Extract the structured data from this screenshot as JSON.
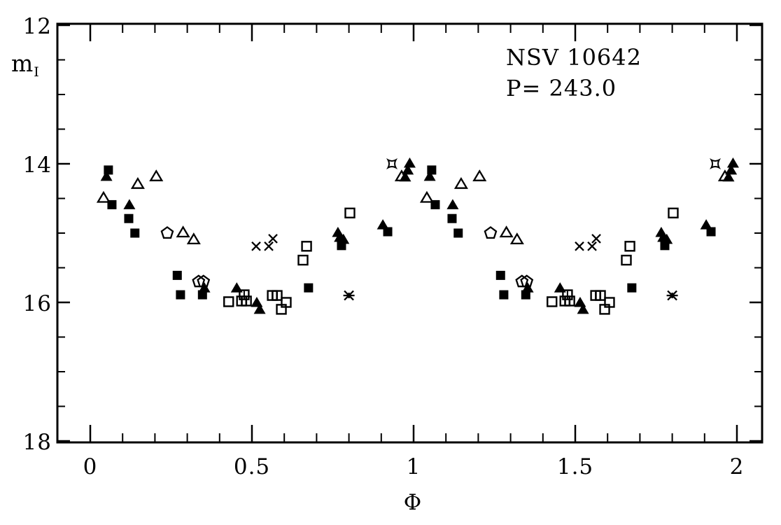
{
  "figure": {
    "star_name": "NSV 10642",
    "period_label": "P= 243.0",
    "xlabel": "Φ",
    "ylabel_main": "m",
    "ylabel_sub": "I"
  },
  "colors": {
    "foreground": "#000000",
    "background": "#ffffff"
  },
  "chart_data": {
    "type": "scatter",
    "title": "NSV 10642",
    "annotations": [
      "NSV 10642",
      "P= 243.0"
    ],
    "xlabel": "Φ",
    "ylabel": "m_I",
    "grid": false,
    "legend": "none",
    "x_axis": {
      "min": -0.1,
      "max": 2.08,
      "major_ticks": [
        0,
        0.5,
        1,
        1.5,
        2
      ],
      "tick_labels": [
        "0",
        "0.5",
        "1",
        "1.5",
        "2"
      ],
      "minor_step": 0.1
    },
    "y_axis": {
      "min": 12,
      "max": 18,
      "inverted": true,
      "major_ticks": [
        12,
        14,
        16,
        18
      ],
      "tick_labels": [
        "12",
        "14",
        "16",
        "18"
      ],
      "minor_step": 0.5
    },
    "phase_duplicated": true,
    "note": "Each point (phase 0-1) is plotted twice: at phase and phase+1",
    "series": [
      {
        "name": "filled-square",
        "marker": "filled_square",
        "points": [
          [
            0.056,
            14.09
          ],
          [
            0.067,
            14.59
          ],
          [
            0.119,
            14.79
          ],
          [
            0.138,
            15.0
          ],
          [
            0.269,
            15.61
          ],
          [
            0.279,
            15.89
          ],
          [
            0.347,
            15.89
          ],
          [
            0.675,
            15.79
          ],
          [
            0.777,
            15.18
          ],
          [
            0.92,
            14.98
          ]
        ]
      },
      {
        "name": "filled-triangle",
        "marker": "filled_triangle",
        "points": [
          [
            0.05,
            14.18
          ],
          [
            0.121,
            14.59
          ],
          [
            0.353,
            15.79
          ],
          [
            0.453,
            15.79
          ],
          [
            0.515,
            16.0
          ],
          [
            0.524,
            16.1
          ],
          [
            0.766,
            14.99
          ],
          [
            0.772,
            15.06
          ],
          [
            0.783,
            15.09
          ],
          [
            0.905,
            14.88
          ],
          [
            0.974,
            14.19
          ],
          [
            0.982,
            14.09
          ],
          [
            0.988,
            13.99
          ]
        ]
      },
      {
        "name": "open-triangle",
        "marker": "open_triangle",
        "points": [
          [
            0.041,
            14.49
          ],
          [
            0.147,
            14.29
          ],
          [
            0.204,
            14.18
          ],
          [
            0.287,
            14.99
          ],
          [
            0.32,
            15.09
          ],
          [
            0.963,
            14.18
          ]
        ]
      },
      {
        "name": "open-square",
        "marker": "open_square",
        "points": [
          [
            0.428,
            15.99
          ],
          [
            0.591,
            16.1
          ],
          [
            0.606,
            16.0
          ],
          [
            0.658,
            15.39
          ],
          [
            0.669,
            15.19
          ],
          [
            0.803,
            14.71
          ]
        ]
      },
      {
        "name": "open-square-errorbar",
        "marker": "open_square_bar",
        "points": [
          [
            0.468,
            15.98
          ],
          [
            0.483,
            15.98
          ],
          [
            0.476,
            15.89
          ],
          [
            0.563,
            15.9
          ],
          [
            0.578,
            15.9
          ]
        ]
      },
      {
        "name": "open-pentagon",
        "marker": "open_pentagon",
        "points": [
          [
            0.238,
            15.0
          ],
          [
            0.335,
            15.7
          ],
          [
            0.35,
            15.7
          ]
        ]
      },
      {
        "name": "cross",
        "marker": "cross",
        "points": [
          [
            0.513,
            15.19
          ],
          [
            0.552,
            15.19
          ],
          [
            0.565,
            15.08
          ]
        ]
      },
      {
        "name": "asterisk",
        "marker": "asterisk",
        "points": [
          [
            0.8,
            15.9
          ]
        ]
      },
      {
        "name": "open-star",
        "marker": "open_star",
        "points": [
          [
            0.933,
            14.0
          ]
        ]
      }
    ]
  }
}
